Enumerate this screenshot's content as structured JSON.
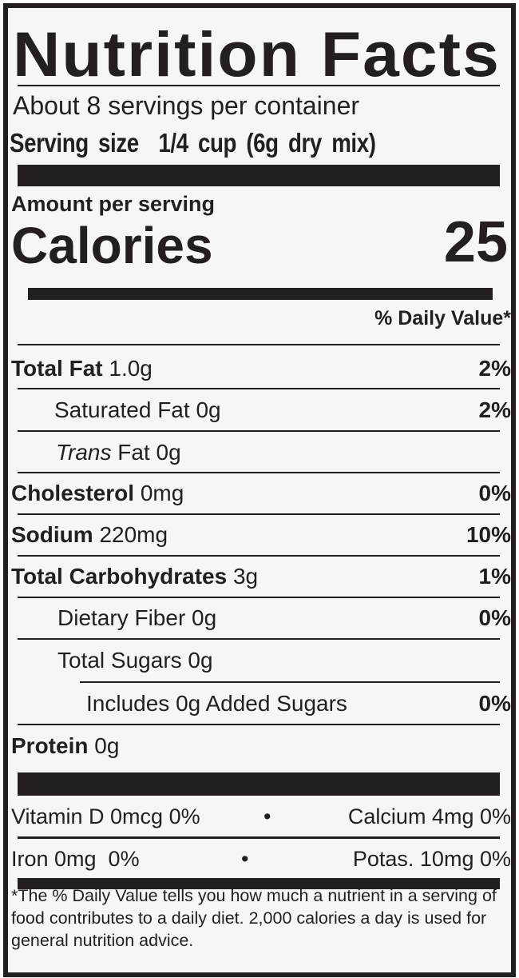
{
  "title": "Nutrition Facts",
  "servings_per_container": "About 8 servings per container",
  "serving_size": {
    "label": "Serving size",
    "value": "1/4 cup (6g dry mix)"
  },
  "amount_per_serving": "Amount per serving",
  "calories": {
    "label": "Calories",
    "value": "25"
  },
  "daily_value_header": "% Daily Value*",
  "rows": [
    {
      "name": "Total Fat",
      "amount": "1.0g",
      "dv": "2%"
    },
    {
      "name": "Saturated Fat",
      "amount": "0g",
      "dv": "2%"
    },
    {
      "name": "Trans",
      "name_suffix": "Fat",
      "amount": "0g",
      "dv": ""
    },
    {
      "name": "Cholesterol",
      "amount": "0mg",
      "dv": "0%"
    },
    {
      "name": "Sodium",
      "amount": "220mg",
      "dv": "10%"
    },
    {
      "name": "Total Carbohydrates",
      "amount": "3g",
      "dv": "1%"
    },
    {
      "name": "Dietary Fiber",
      "amount": "0g",
      "dv": "0%"
    },
    {
      "name": "Total Sugars",
      "amount": "0g",
      "dv": ""
    },
    {
      "name": "Includes 0g Added Sugars",
      "amount": "",
      "dv": "0%"
    },
    {
      "name": "Protein",
      "amount": "0g",
      "dv": ""
    }
  ],
  "micros": [
    {
      "left": "Vitamin D 0mcg 0%",
      "separator": "•",
      "right": "Calcium 4mg 0%"
    },
    {
      "left": "Iron 0mg  0%",
      "separator": "•",
      "right": "Potas. 10mg 0%"
    }
  ],
  "footnote": "*The % Daily Value tells you how much a nutrient in a serving of food contributes to a daily diet. 2,000 calories a day is used for general nutrition advice."
}
